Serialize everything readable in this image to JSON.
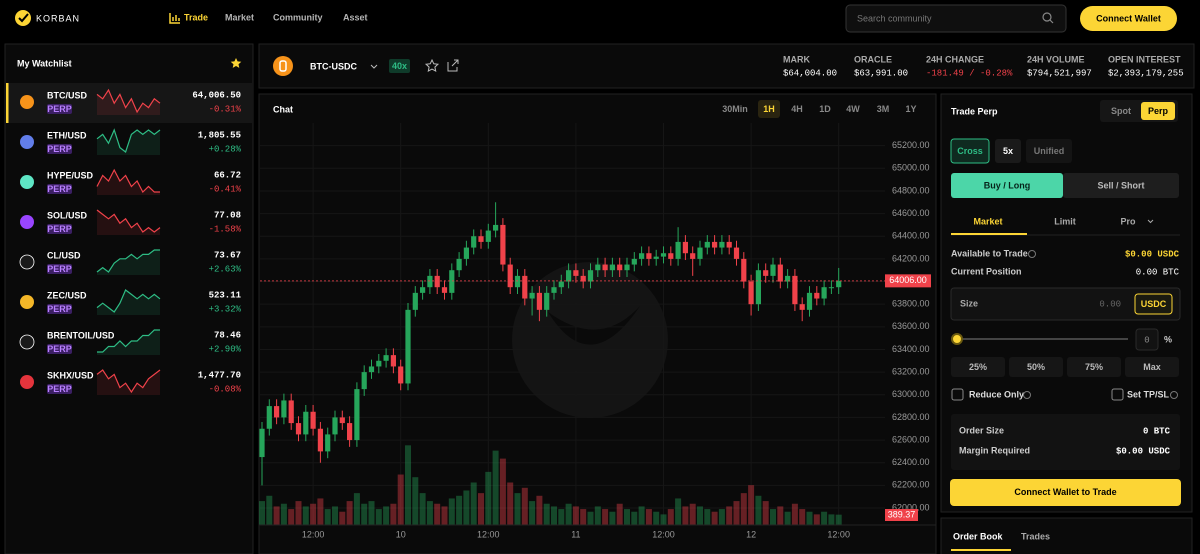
{
  "header": {
    "logo": "KORBAN",
    "nav": [
      "Trade",
      "Market",
      "Community",
      "Asset"
    ],
    "active_nav": 0,
    "search_placeholder": "Search community",
    "connect_button": "Connect Wallet"
  },
  "watchlist": {
    "title": "My Watchlist",
    "items": [
      {
        "symbol": "BTC/USD",
        "badge": "PERP",
        "price": "64,006.50",
        "change": "-0.31%",
        "color": "#f0424a",
        "spark": [
          6,
          5,
          7,
          4,
          6,
          3,
          5,
          2,
          4,
          3,
          5,
          4
        ]
      },
      {
        "symbol": "ETH/USD",
        "badge": "PERP",
        "price": "1,805.55",
        "change": "+0.28%",
        "color": "#2ebd85",
        "spark": [
          4,
          5,
          3,
          6,
          2,
          1,
          5,
          6,
          5,
          6,
          5,
          6
        ]
      },
      {
        "symbol": "HYPE/USD",
        "badge": "PERP",
        "price": "66.72",
        "change": "-0.41%",
        "color": "#f0424a",
        "spark": [
          4,
          6,
          5,
          7,
          5,
          6,
          4,
          5,
          3,
          4,
          3,
          3
        ]
      },
      {
        "symbol": "SOL/USD",
        "badge": "PERP",
        "price": "77.08",
        "change": "-1.58%",
        "color": "#f0424a",
        "spark": [
          7,
          6,
          5,
          6,
          4,
          5,
          3,
          4,
          2,
          3,
          2,
          3
        ]
      },
      {
        "symbol": "CL/USD",
        "badge": "PERP",
        "price": "73.67",
        "change": "+2.63%",
        "color": "#2ebd85",
        "spark": [
          1,
          2,
          1,
          3,
          4,
          4,
          5,
          4,
          5,
          5,
          6,
          6
        ]
      },
      {
        "symbol": "ZEC/USD",
        "badge": "PERP",
        "price": "523.11",
        "change": "+3.32%",
        "color": "#2ebd85",
        "spark": [
          2,
          3,
          2,
          1,
          3,
          6,
          5,
          4,
          5,
          4,
          5,
          4
        ]
      },
      {
        "symbol": "BRENTOIL/USD",
        "badge": "PERP",
        "price": "78.46",
        "change": "+2.90%",
        "color": "#2ebd85",
        "spark": [
          1,
          1,
          2,
          2,
          3,
          2,
          3,
          3,
          4,
          4,
          5,
          5
        ]
      },
      {
        "symbol": "SKHX/USD",
        "badge": "PERP",
        "price": "1,477.70",
        "change": "-0.08%",
        "color": "#f0424a",
        "spark": [
          5,
          6,
          4,
          5,
          2,
          3,
          1,
          3,
          2,
          4,
          5,
          6
        ]
      }
    ]
  },
  "ticker": {
    "symbol": "BTC-USDC",
    "leverage": "40x",
    "stats": [
      {
        "label": "MARK",
        "value": "$64,004.00",
        "color": "#ffffff"
      },
      {
        "label": "ORACLE",
        "value": "$63,991.00",
        "color": "#ffffff"
      },
      {
        "label": "24H CHANGE",
        "value": "-181.49 / -0.28%",
        "color": "#f0424a"
      },
      {
        "label": "24H VOLUME",
        "value": "$794,521,997",
        "color": "#ffffff"
      },
      {
        "label": "OPEN INTEREST",
        "value": "$2,393,179,255",
        "color": "#ffffff"
      }
    ]
  },
  "chart": {
    "title": "Chat",
    "timeframes": [
      "30Min",
      "1H",
      "4H",
      "1D",
      "4W",
      "3M",
      "1Y"
    ],
    "active_timeframe": 1,
    "chart_data": {
      "type": "candlestick",
      "categories": [
        null,
        null,
        null,
        null,
        null,
        null,
        null,
        "12:00",
        null,
        null,
        null,
        null,
        null,
        null,
        null,
        null,
        null,
        null,
        null,
        "10",
        null,
        null,
        null,
        null,
        null,
        null,
        null,
        null,
        null,
        null,
        null,
        "12:00",
        null,
        null,
        null,
        null,
        null,
        null,
        null,
        null,
        null,
        null,
        null,
        "11",
        null,
        null,
        null,
        null,
        null,
        null,
        null,
        null,
        null,
        null,
        null,
        "12:00",
        null,
        null,
        null,
        null,
        null,
        null,
        null,
        null,
        null,
        null,
        null,
        "12",
        null,
        null,
        null,
        null,
        null,
        null,
        null,
        null,
        null,
        null,
        null,
        "12:00"
      ],
      "open": [
        62450,
        62700,
        62900,
        62800,
        62950,
        62750,
        62650,
        62850,
        62700,
        62500,
        62650,
        62800,
        62750,
        62600,
        63050,
        63200,
        63250,
        63300,
        63350,
        63250,
        63100,
        63750,
        63900,
        63950,
        64050,
        63950,
        63900,
        64100,
        64200,
        64300,
        64400,
        64350,
        64450,
        64500,
        64150,
        63950,
        64050,
        63850,
        63900,
        63750,
        63900,
        63950,
        64000,
        64100,
        64050,
        64000,
        64100,
        64150,
        64100,
        64150,
        64100,
        64150,
        64200,
        64250,
        64200,
        64220,
        64250,
        64200,
        64350,
        64250,
        64200,
        64300,
        64350,
        64300,
        64350,
        64300,
        64200,
        64000,
        63800,
        64100,
        64050,
        64150,
        64000,
        64050,
        63800,
        63750,
        63900,
        63850,
        63950,
        63950
      ],
      "high": [
        62760,
        62960,
        62960,
        63010,
        63010,
        62810,
        62910,
        62910,
        62760,
        62710,
        62860,
        62860,
        62810,
        63110,
        63260,
        63310,
        63360,
        63410,
        63410,
        63310,
        63810,
        63960,
        64010,
        64110,
        64110,
        64010,
        64160,
        64260,
        64360,
        64460,
        64460,
        64510,
        64700,
        64560,
        64210,
        64110,
        64110,
        63960,
        63960,
        63960,
        64010,
        64060,
        64160,
        64160,
        64110,
        64160,
        64210,
        64210,
        64210,
        64210,
        64210,
        64260,
        64310,
        64310,
        64280,
        64310,
        64310,
        64480,
        64410,
        64310,
        64360,
        64410,
        64410,
        64410,
        64410,
        64360,
        64260,
        64060,
        64160,
        64160,
        64210,
        64210,
        64110,
        64110,
        63860,
        63960,
        63960,
        64010,
        64010,
        64120
      ],
      "low": [
        62200,
        62640,
        62740,
        62740,
        62690,
        62590,
        62590,
        62640,
        62400,
        62440,
        62590,
        62690,
        62540,
        62540,
        62990,
        63140,
        63190,
        63240,
        63190,
        63040,
        63040,
        63690,
        63840,
        63890,
        63890,
        63840,
        63840,
        64040,
        64140,
        64240,
        64290,
        64290,
        64390,
        64090,
        63890,
        63890,
        63790,
        63700,
        63650,
        63690,
        63840,
        63890,
        63940,
        63990,
        63940,
        63940,
        64040,
        64040,
        64040,
        64040,
        64040,
        64090,
        64140,
        64140,
        64140,
        64160,
        64140,
        64140,
        64190,
        64050,
        64140,
        64240,
        64240,
        64240,
        64240,
        64140,
        63940,
        63700,
        63740,
        63990,
        63990,
        63940,
        63940,
        63740,
        63650,
        63690,
        63790,
        63790,
        63890,
        63890
      ],
      "close": [
        62700,
        62900,
        62800,
        62950,
        62750,
        62650,
        62850,
        62700,
        62500,
        62650,
        62800,
        62750,
        62600,
        63050,
        63200,
        63250,
        63300,
        63350,
        63250,
        63100,
        63750,
        63900,
        63950,
        64050,
        63950,
        63900,
        64100,
        64200,
        64300,
        64400,
        64350,
        64450,
        64500,
        64150,
        63950,
        64050,
        63850,
        63900,
        63750,
        63900,
        63950,
        64000,
        64100,
        64050,
        64000,
        64100,
        64150,
        64100,
        64150,
        64100,
        64150,
        64200,
        64250,
        64200,
        64220,
        64250,
        64200,
        64350,
        64250,
        64200,
        64300,
        64350,
        64300,
        64350,
        64300,
        64200,
        64000,
        63800,
        64100,
        64050,
        64150,
        64000,
        64050,
        63800,
        63750,
        63900,
        63850,
        63950,
        63950,
        64006
      ],
      "volume": [
        900,
        1100,
        700,
        800,
        600,
        900,
        700,
        800,
        1000,
        600,
        700,
        500,
        900,
        1200,
        800,
        900,
        600,
        700,
        800,
        1900,
        3000,
        1800,
        1200,
        900,
        800,
        700,
        1000,
        1100,
        1300,
        1600,
        1200,
        2000,
        2800,
        2500,
        1600,
        1200,
        1400,
        900,
        1100,
        800,
        700,
        600,
        800,
        700,
        600,
        500,
        700,
        600,
        500,
        800,
        600,
        500,
        700,
        600,
        500,
        400,
        600,
        1000,
        700,
        800,
        700,
        600,
        500,
        600,
        700,
        900,
        1200,
        1500,
        1100,
        900,
        600,
        700,
        500,
        800,
        600,
        500,
        400,
        500,
        400,
        389.37
      ],
      "last_close_label": "64006.00",
      "last_volume_label": "389.37",
      "ylim": [
        61850,
        65400
      ],
      "yticks": [
        {
          "value": 62000,
          "label": "62000.00"
        },
        {
          "value": 62200,
          "label": "62200.00"
        },
        {
          "value": 62400,
          "label": "62400.00"
        },
        {
          "value": 62600,
          "label": "62600.00"
        },
        {
          "value": 62800,
          "label": "62800.00"
        },
        {
          "value": 63000,
          "label": "63000.00"
        },
        {
          "value": 63200,
          "label": "63200.00"
        },
        {
          "value": 63400,
          "label": "63400.00"
        },
        {
          "value": 63600,
          "label": "63600.00"
        },
        {
          "value": 63800,
          "label": "63800.00"
        },
        {
          "value": 64000,
          "label": "64000.00"
        },
        {
          "value": 64200,
          "label": "64200.00"
        },
        {
          "value": 64400,
          "label": "64400.00"
        },
        {
          "value": 64600,
          "label": "64600.00"
        },
        {
          "value": 64800,
          "label": "64800.00"
        },
        {
          "value": 65000,
          "label": "65000.00"
        },
        {
          "value": 65200,
          "label": "65200.00"
        }
      ],
      "y2lim": [
        0,
        3200
      ],
      "up_color": "#26a65b",
      "down_color": "#f0424a",
      "grid": true
    }
  },
  "trade": {
    "title": "Trade Perp",
    "market_tabs": [
      "Spot",
      "Perp"
    ],
    "active_market": 1,
    "margin_modes": [
      "Cross",
      "5x",
      "Unified"
    ],
    "sides": [
      "Buy / Long",
      "Sell / Short"
    ],
    "order_types": [
      "Market",
      "Limit",
      "Pro"
    ],
    "available_label": "Available to Trade",
    "available_value": "$0.00 USDC",
    "position_label": "Current Position",
    "position_value": "0.00 BTC",
    "size_label": "Size",
    "size_value": "0.00",
    "size_unit": "USDC",
    "percent_value": "0",
    "percent_unit": "%",
    "presets": [
      "25%",
      "50%",
      "75%",
      "Max"
    ],
    "reduce_only": "Reduce Only",
    "tp_sl": "Set TP/SL",
    "summary": [
      {
        "label": "Order Size",
        "value": "0 BTC"
      },
      {
        "label": "Margin Required",
        "value": "$0.00 USDC"
      }
    ],
    "connect_button": "Connect Wallet to Trade"
  },
  "bottom_tabs": [
    "Order Book",
    "Trades"
  ]
}
